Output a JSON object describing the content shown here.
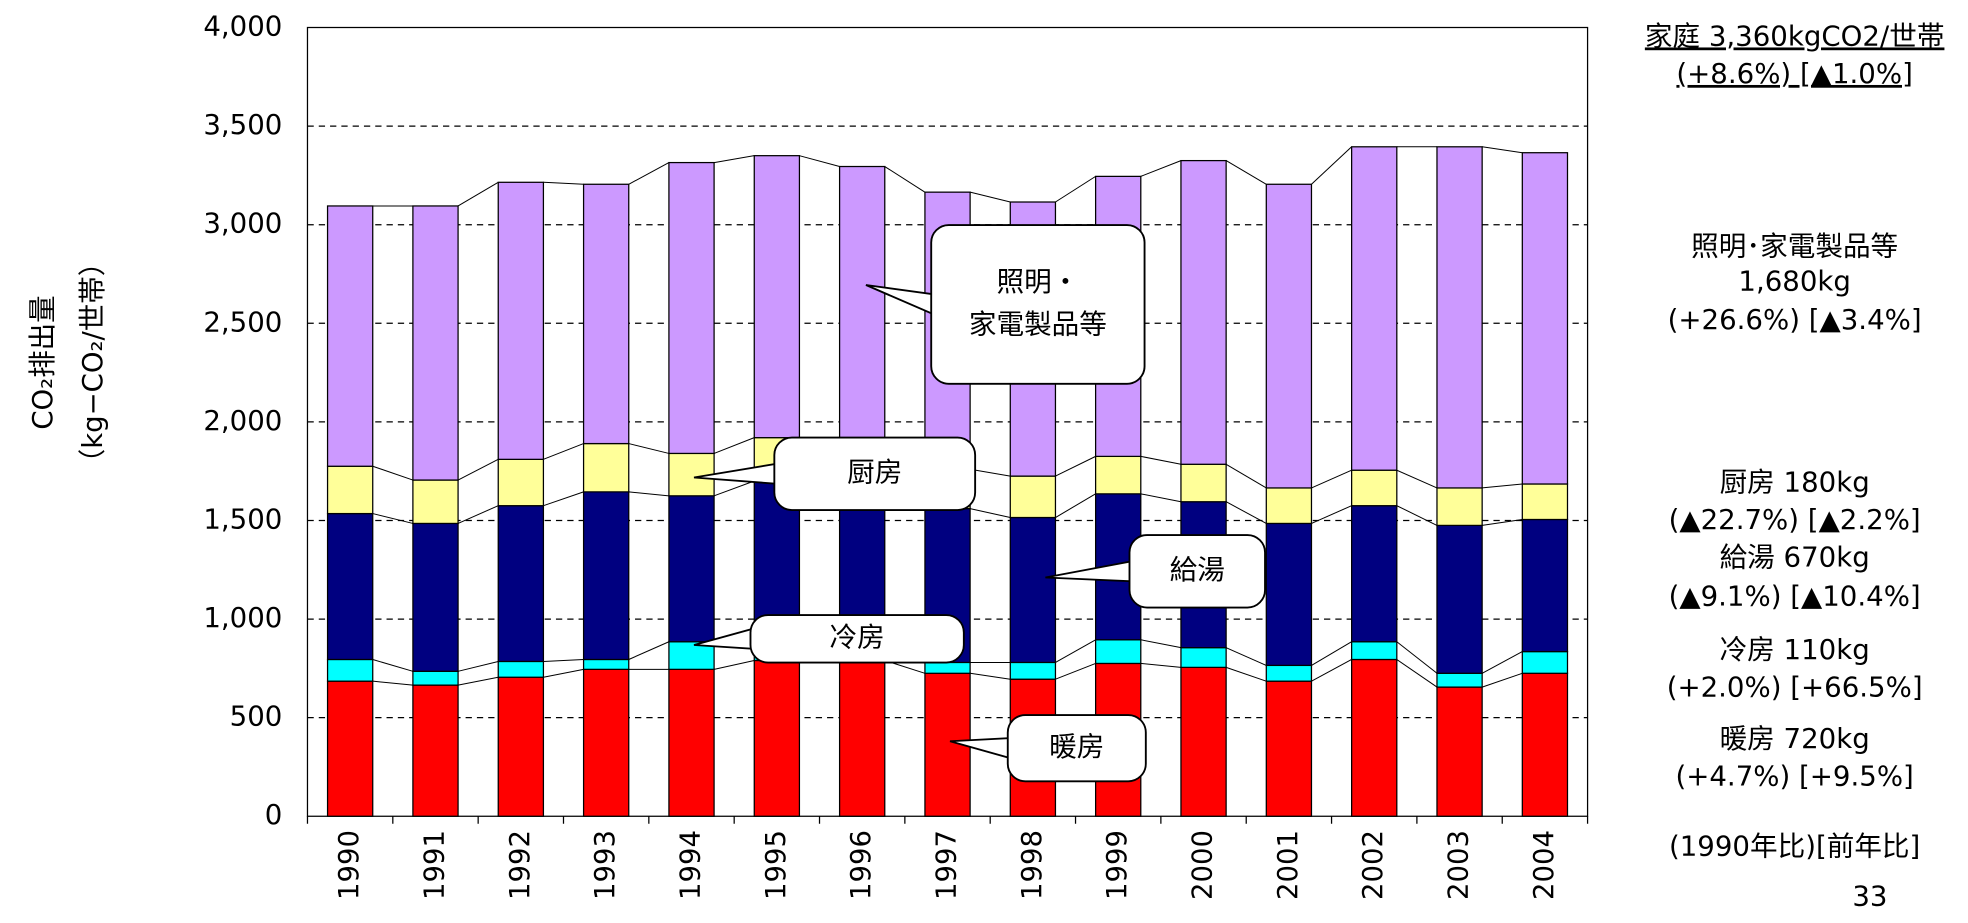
{
  "chart_data": {
    "type": "stacked-bar",
    "y_label_lines": [
      "CO₂排出量",
      "（kg−CO₂/世帯）"
    ],
    "categories": [
      "1990",
      "1991",
      "1992",
      "1993",
      "1994",
      "1995",
      "1996",
      "1997",
      "1998",
      "1999",
      "2000",
      "2001",
      "2002",
      "2003",
      "2004"
    ],
    "series": [
      {
        "name": "暖房",
        "color": "#ff0000",
        "values": [
          685,
          665,
          705,
          745,
          745,
          790,
          790,
          725,
          695,
          775,
          755,
          685,
          795,
          655,
          725
        ]
      },
      {
        "name": "冷房",
        "color": "#00ffff",
        "values": [
          110,
          70,
          80,
          50,
          140,
          90,
          90,
          55,
          85,
          120,
          100,
          80,
          90,
          70,
          110
        ]
      },
      {
        "name": "給湯",
        "color": "#000080",
        "values": [
          740,
          750,
          790,
          850,
          740,
          820,
          810,
          780,
          735,
          740,
          740,
          720,
          690,
          750,
          670
        ]
      },
      {
        "name": "厨房",
        "color": "#ffff99",
        "values": [
          240,
          220,
          235,
          245,
          215,
          220,
          210,
          200,
          210,
          190,
          190,
          180,
          180,
          190,
          180
        ]
      },
      {
        "name": "照明・家電製品等",
        "color": "#cc99ff",
        "values": [
          1320,
          1390,
          1405,
          1315,
          1475,
          1430,
          1395,
          1405,
          1390,
          1420,
          1540,
          1540,
          1640,
          1730,
          1680
        ]
      }
    ],
    "ylim": [
      0,
      4000
    ],
    "yticks": [
      0,
      {
        "value": 500,
        "label": "500"
      },
      {
        "value": 1000,
        "label": "1,000"
      },
      {
        "value": 1500,
        "label": "1,500"
      },
      {
        "value": 2000,
        "label": "2,000"
      },
      {
        "value": 2500,
        "label": "2,500"
      },
      {
        "value": 3000,
        "label": "3,000"
      },
      {
        "value": 3500,
        "label": "3,500"
      },
      {
        "value": 4000,
        "label": "4,000"
      }
    ],
    "grid": true,
    "callouts": [
      [
        "照明・",
        "家電製品等"
      ],
      [
        "厨房"
      ],
      [
        "給湯"
      ],
      [
        "冷房"
      ],
      [
        "暖房"
      ]
    ],
    "side_notes": [
      "家庭  3,360kgCO2/世帯",
      "(+8.6%) [▲1.0%]",
      "照明･家電製品等",
      "1,680kg",
      "(+26.6%)  [▲3.4%]",
      "厨房  180kg",
      "(▲22.7%)  [▲2.2%]",
      "給湯  670kg",
      "(▲9.1%)  [▲10.4%]",
      "冷房  110kg",
      "(+2.0%)  [+66.5%]",
      "暖房  720kg",
      "(+4.7%)  [+9.5%]",
      "(1990年比)[前年比]"
    ],
    "page_number": "33"
  }
}
